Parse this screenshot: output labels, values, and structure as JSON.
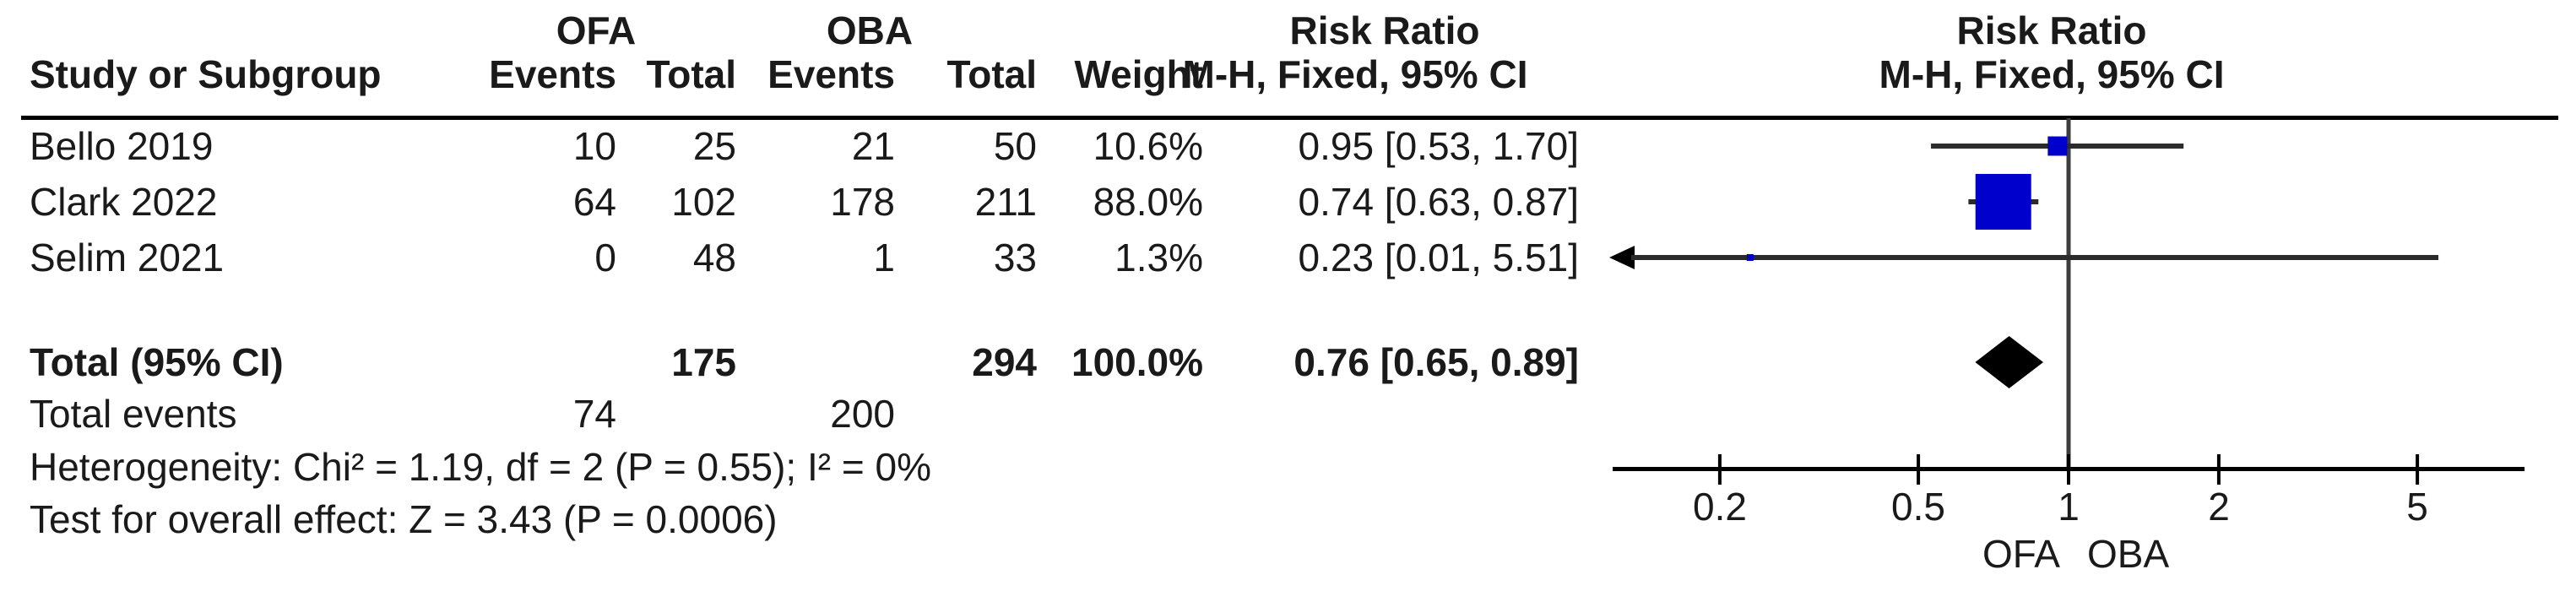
{
  "header": {
    "group_ofa": "OFA",
    "group_oba": "OBA",
    "risk_ratio_left": "Risk Ratio",
    "risk_ratio_right": "Risk Ratio",
    "study_col": "Study or Subgroup",
    "ofa_events_col": "Events",
    "ofa_total_col": "Total",
    "oba_events_col": "Events",
    "oba_total_col": "Total",
    "weight_col": "Weight",
    "mh_fixed_left": "M-H, Fixed, 95% CI",
    "mh_fixed_right": "M-H, Fixed, 95% CI"
  },
  "rows": [
    {
      "study": "Bello 2019",
      "ofa_events": "10",
      "ofa_total": "25",
      "oba_events": "21",
      "oba_total": "50",
      "weight": "10.6%",
      "rr": "0.95 [0.53, 1.70]"
    },
    {
      "study": "Clark 2022",
      "ofa_events": "64",
      "ofa_total": "102",
      "oba_events": "178",
      "oba_total": "211",
      "weight": "88.0%",
      "rr": "0.74 [0.63, 0.87]"
    },
    {
      "study": "Selim 2021",
      "ofa_events": "0",
      "ofa_total": "48",
      "oba_events": "1",
      "oba_total": "33",
      "weight": "1.3%",
      "rr": "0.23 [0.01, 5.51]"
    }
  ],
  "totals": {
    "label": "Total (95% CI)",
    "ofa_total": "175",
    "oba_total": "294",
    "weight": "100.0%",
    "rr": "0.76 [0.65, 0.89]"
  },
  "total_events": {
    "label": "Total events",
    "ofa": "74",
    "oba": "200"
  },
  "stats": {
    "heterogeneity": "Heterogeneity: Chi² = 1.19, df = 2 (P = 0.55); I² = 0%",
    "overall_effect": "Test for overall effect: Z = 3.43 (P = 0.0006)"
  },
  "axis": {
    "tick_labels": [
      "0.2",
      "0.5",
      "1",
      "2",
      "5"
    ],
    "favours_left": "OFA",
    "favours_right": "OBA"
  },
  "chart_data": {
    "type": "forest",
    "effect_measure": "Risk Ratio",
    "method": "M-H, Fixed, 95% CI",
    "x_scale": "log",
    "x_ticks": [
      0.2,
      0.5,
      1,
      2,
      5
    ],
    "x_range": [
      0.122,
      8.2
    ],
    "null_value": 1,
    "studies": [
      {
        "name": "Bello 2019",
        "rr": 0.95,
        "ci_low": 0.53,
        "ci_high": 1.7,
        "weight_pct": 10.6
      },
      {
        "name": "Clark 2022",
        "rr": 0.74,
        "ci_low": 0.63,
        "ci_high": 0.87,
        "weight_pct": 88.0
      },
      {
        "name": "Selim 2021",
        "rr": 0.23,
        "ci_low": 0.01,
        "ci_high": 5.51,
        "weight_pct": 1.3
      }
    ],
    "overall": {
      "rr": 0.76,
      "ci_low": 0.65,
      "ci_high": 0.89,
      "weight_pct": 100.0
    },
    "colors": {
      "square": "#0000cc",
      "diamond": "#000000",
      "ci_line": "#2b2b2b",
      "axis": "#000000",
      "null_line": "#3c3c3c"
    }
  }
}
